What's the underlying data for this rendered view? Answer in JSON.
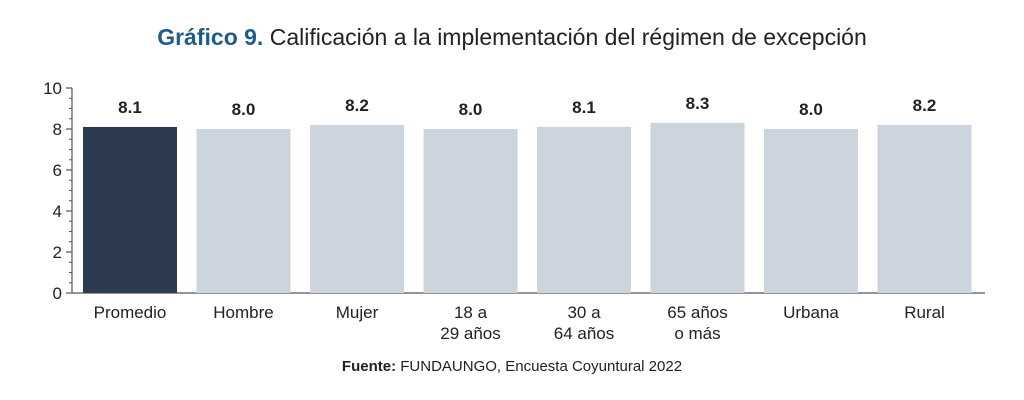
{
  "title": {
    "prefix": "Gráfico 9.",
    "text": "Calificación a la implementación del régimen de excepción"
  },
  "source": {
    "label": "Fuente:",
    "text": "FUNDAUNGO, Encuesta Coyuntural 2022"
  },
  "colors": {
    "highlight": "#2b3a4c",
    "bar": "#ccd4de",
    "axis": "#555555",
    "text": "#222222"
  },
  "chart_data": {
    "type": "bar",
    "categories": [
      [
        "Promedio"
      ],
      [
        "Hombre"
      ],
      [
        "Mujer"
      ],
      [
        "18 a",
        "29 años"
      ],
      [
        "30 a",
        "64 años"
      ],
      [
        "65 años",
        "o más"
      ],
      [
        "Urbana"
      ],
      [
        "Rural"
      ]
    ],
    "values": [
      8.1,
      8.0,
      8.2,
      8.0,
      8.1,
      8.3,
      8.0,
      8.2
    ],
    "value_labels": [
      "8.1",
      "8.0",
      "8.2",
      "8.0",
      "8.1",
      "8.3",
      "8.0",
      "8.2"
    ],
    "highlight_index": 0,
    "ylim": [
      0,
      10
    ],
    "yticks": [
      0,
      2,
      4,
      6,
      8,
      10
    ],
    "minor_ticks": true,
    "grid": false,
    "legend": "none"
  }
}
